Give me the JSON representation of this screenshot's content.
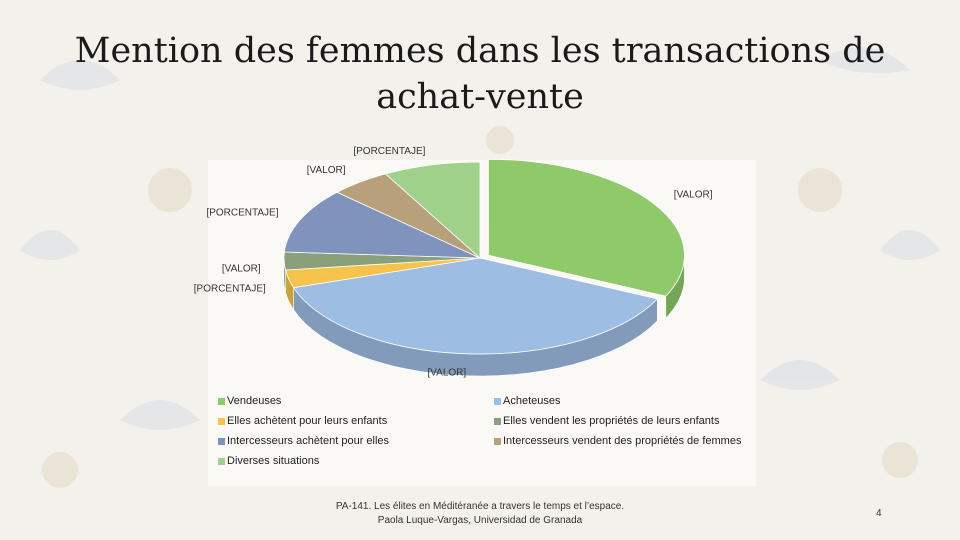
{
  "slide": {
    "title": "Mention des femmes dans les transactions de achat-vente",
    "footer": "PA-141. Les élites en Méditéranée a travers le temps et l’espace. Paola Luque-Vargas, Universidad de Granada",
    "page_number": "4"
  },
  "chart_data": {
    "type": "pie",
    "title": "",
    "style": "3d-exploded",
    "legend_position": "bottom",
    "categories": [
      "Vendeuses",
      "Acheteuses",
      "Elles achètent pour leurs enfants",
      "Elles vendent les propriétés de leurs enfants",
      "Intercesseurs achètent pour elles",
      "Intercesseurs vendent des propriétés de femmes",
      "Diverses situations"
    ],
    "values": [
      32,
      38,
      3,
      3,
      11,
      5,
      8
    ],
    "colors": [
      "#8fc96a",
      "#9ebde3",
      "#f6c44d",
      "#8aa07a",
      "#7f93bd",
      "#b7a07a",
      "#9fd18a"
    ],
    "data_labels": [
      "[VALOR]",
      "[VALOR]",
      "[PORCENTAJE]",
      "[VALOR]",
      "[PORCENTAJE]",
      "[VALOR]",
      "[PORCENTAJE]"
    ]
  }
}
